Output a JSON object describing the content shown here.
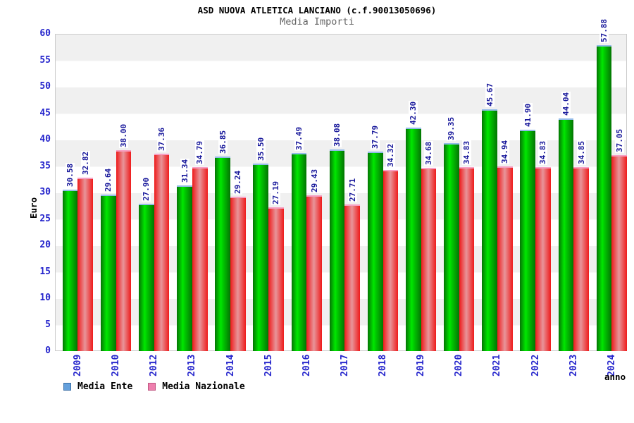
{
  "header": {
    "title": "ASD NUOVA ATLETICA LANCIANO (c.f.90013050696)",
    "subtitle": "Media Importi"
  },
  "chart_data": {
    "type": "bar",
    "title": "ASD NUOVA ATLETICA LANCIANO (c.f.90013050696)",
    "subtitle": "Media Importi",
    "categories": [
      "2009",
      "2010",
      "2012",
      "2013",
      "2014",
      "2015",
      "2016",
      "2017",
      "2018",
      "2019",
      "2020",
      "2021",
      "2022",
      "2023",
      "2024"
    ],
    "series": [
      {
        "name": "Media Ente",
        "bar_color": "#00cc00",
        "legend_color": "#64a0dc",
        "values": [
          30.58,
          29.64,
          27.9,
          31.34,
          36.85,
          35.5,
          37.49,
          38.08,
          37.79,
          42.3,
          39.35,
          45.67,
          41.9,
          44.04,
          57.88
        ]
      },
      {
        "name": "Media Nazionale",
        "bar_color": "#ee1b1b",
        "legend_color": "#ee7fae",
        "values": [
          32.82,
          38.0,
          37.36,
          34.79,
          29.24,
          27.19,
          29.43,
          27.71,
          34.32,
          34.68,
          34.83,
          34.94,
          34.83,
          34.85,
          37.05
        ]
      }
    ],
    "xlabel": "anno",
    "ylabel": "Euro",
    "ylim": [
      0,
      60
    ],
    "ytick_step": 5,
    "value_label_color": "#18189b",
    "tick_label_color": "#2525cc",
    "grid_bands": true,
    "legend_position": "bottom-left"
  }
}
